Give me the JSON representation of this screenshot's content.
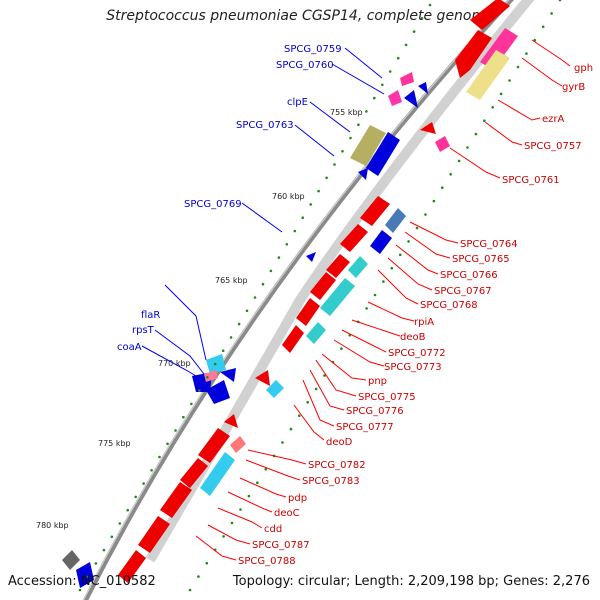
{
  "title": "Streptococcus pneumoniae CGSP14, complete genome",
  "footer": {
    "accession": "Accession: NC_010582",
    "summary": "Topology: circular; Length: 2,209,198 bp; Genes: 2,276"
  },
  "colors": {
    "plus_strand_label": "#ff0000",
    "minus_strand_label": "#0000cc",
    "backbone": "#8a8a8a",
    "tick": "#1a8c1a"
  },
  "kbp_labels": [
    "755 kbp",
    "760 kbp",
    "765 kbp",
    "770 kbp",
    "775 kbp",
    "780 kbp"
  ],
  "genes_right": [
    "gph",
    "gyrB",
    "ezrA",
    "SPCG_0757",
    "SPCG_0761",
    "SPCG_0764",
    "SPCG_0765",
    "SPCG_0766",
    "SPCG_0767",
    "SPCG_0768",
    "rpiA",
    "deoB",
    "SPCG_0772",
    "SPCG_0773",
    "pnp",
    "SPCG_0775",
    "SPCG_0776",
    "SPCG_0777",
    "deoD",
    "SPCG_0782",
    "SPCG_0783",
    "pdp",
    "deoC",
    "cdd",
    "SPCG_0787",
    "SPCG_0788"
  ],
  "genes_left": [
    "SPCG_0759",
    "SPCG_0760",
    "clpE",
    "SPCG_0763",
    "SPCG_0769",
    "flaR",
    "rpsT",
    "coaA"
  ]
}
